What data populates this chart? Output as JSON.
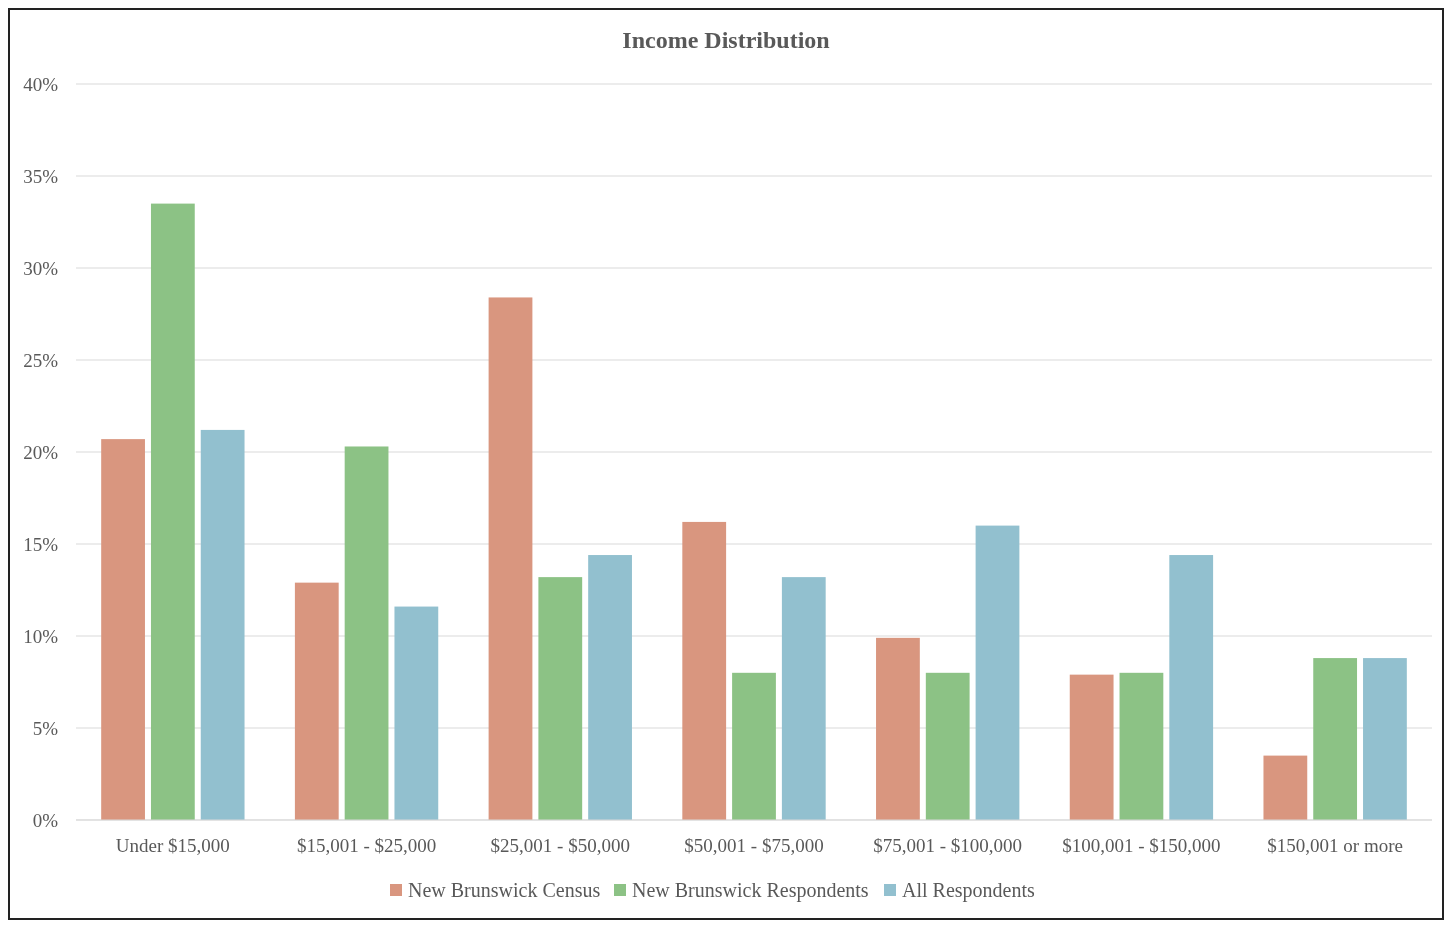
{
  "chart_data": {
    "type": "bar",
    "title": "Income Distribution",
    "categories": [
      "Under $15,000",
      "$15,001 - $25,000",
      "$25,001 - $50,000",
      "$50,001 - $75,000",
      "$75,001 - $100,000",
      "$100,001 - $150,000",
      "$150,001 or more"
    ],
    "series": [
      {
        "name": "New Brunswick Census",
        "color": "#d9967f",
        "values": [
          20.7,
          12.9,
          28.4,
          16.2,
          9.9,
          7.9,
          3.5
        ]
      },
      {
        "name": "New Brunswick Respondents",
        "color": "#8cc285",
        "values": [
          33.5,
          20.3,
          13.2,
          8.0,
          8.0,
          8.0,
          8.8
        ]
      },
      {
        "name": "All Respondents",
        "color": "#92c0cf",
        "values": [
          21.2,
          11.6,
          14.4,
          13.2,
          16.0,
          14.4,
          8.8
        ]
      }
    ],
    "ylim": [
      0,
      40
    ],
    "yticks": [
      {
        "value": 0,
        "label": "0%"
      },
      {
        "value": 5,
        "label": "5%"
      },
      {
        "value": 10,
        "label": "10%"
      },
      {
        "value": 15,
        "label": "15%"
      },
      {
        "value": 20,
        "label": "20%"
      },
      {
        "value": 25,
        "label": "25%"
      },
      {
        "value": 30,
        "label": "30%"
      },
      {
        "value": 35,
        "label": "35%"
      },
      {
        "value": 40,
        "label": "40%"
      }
    ],
    "grid": "y",
    "legend": "bottom"
  }
}
